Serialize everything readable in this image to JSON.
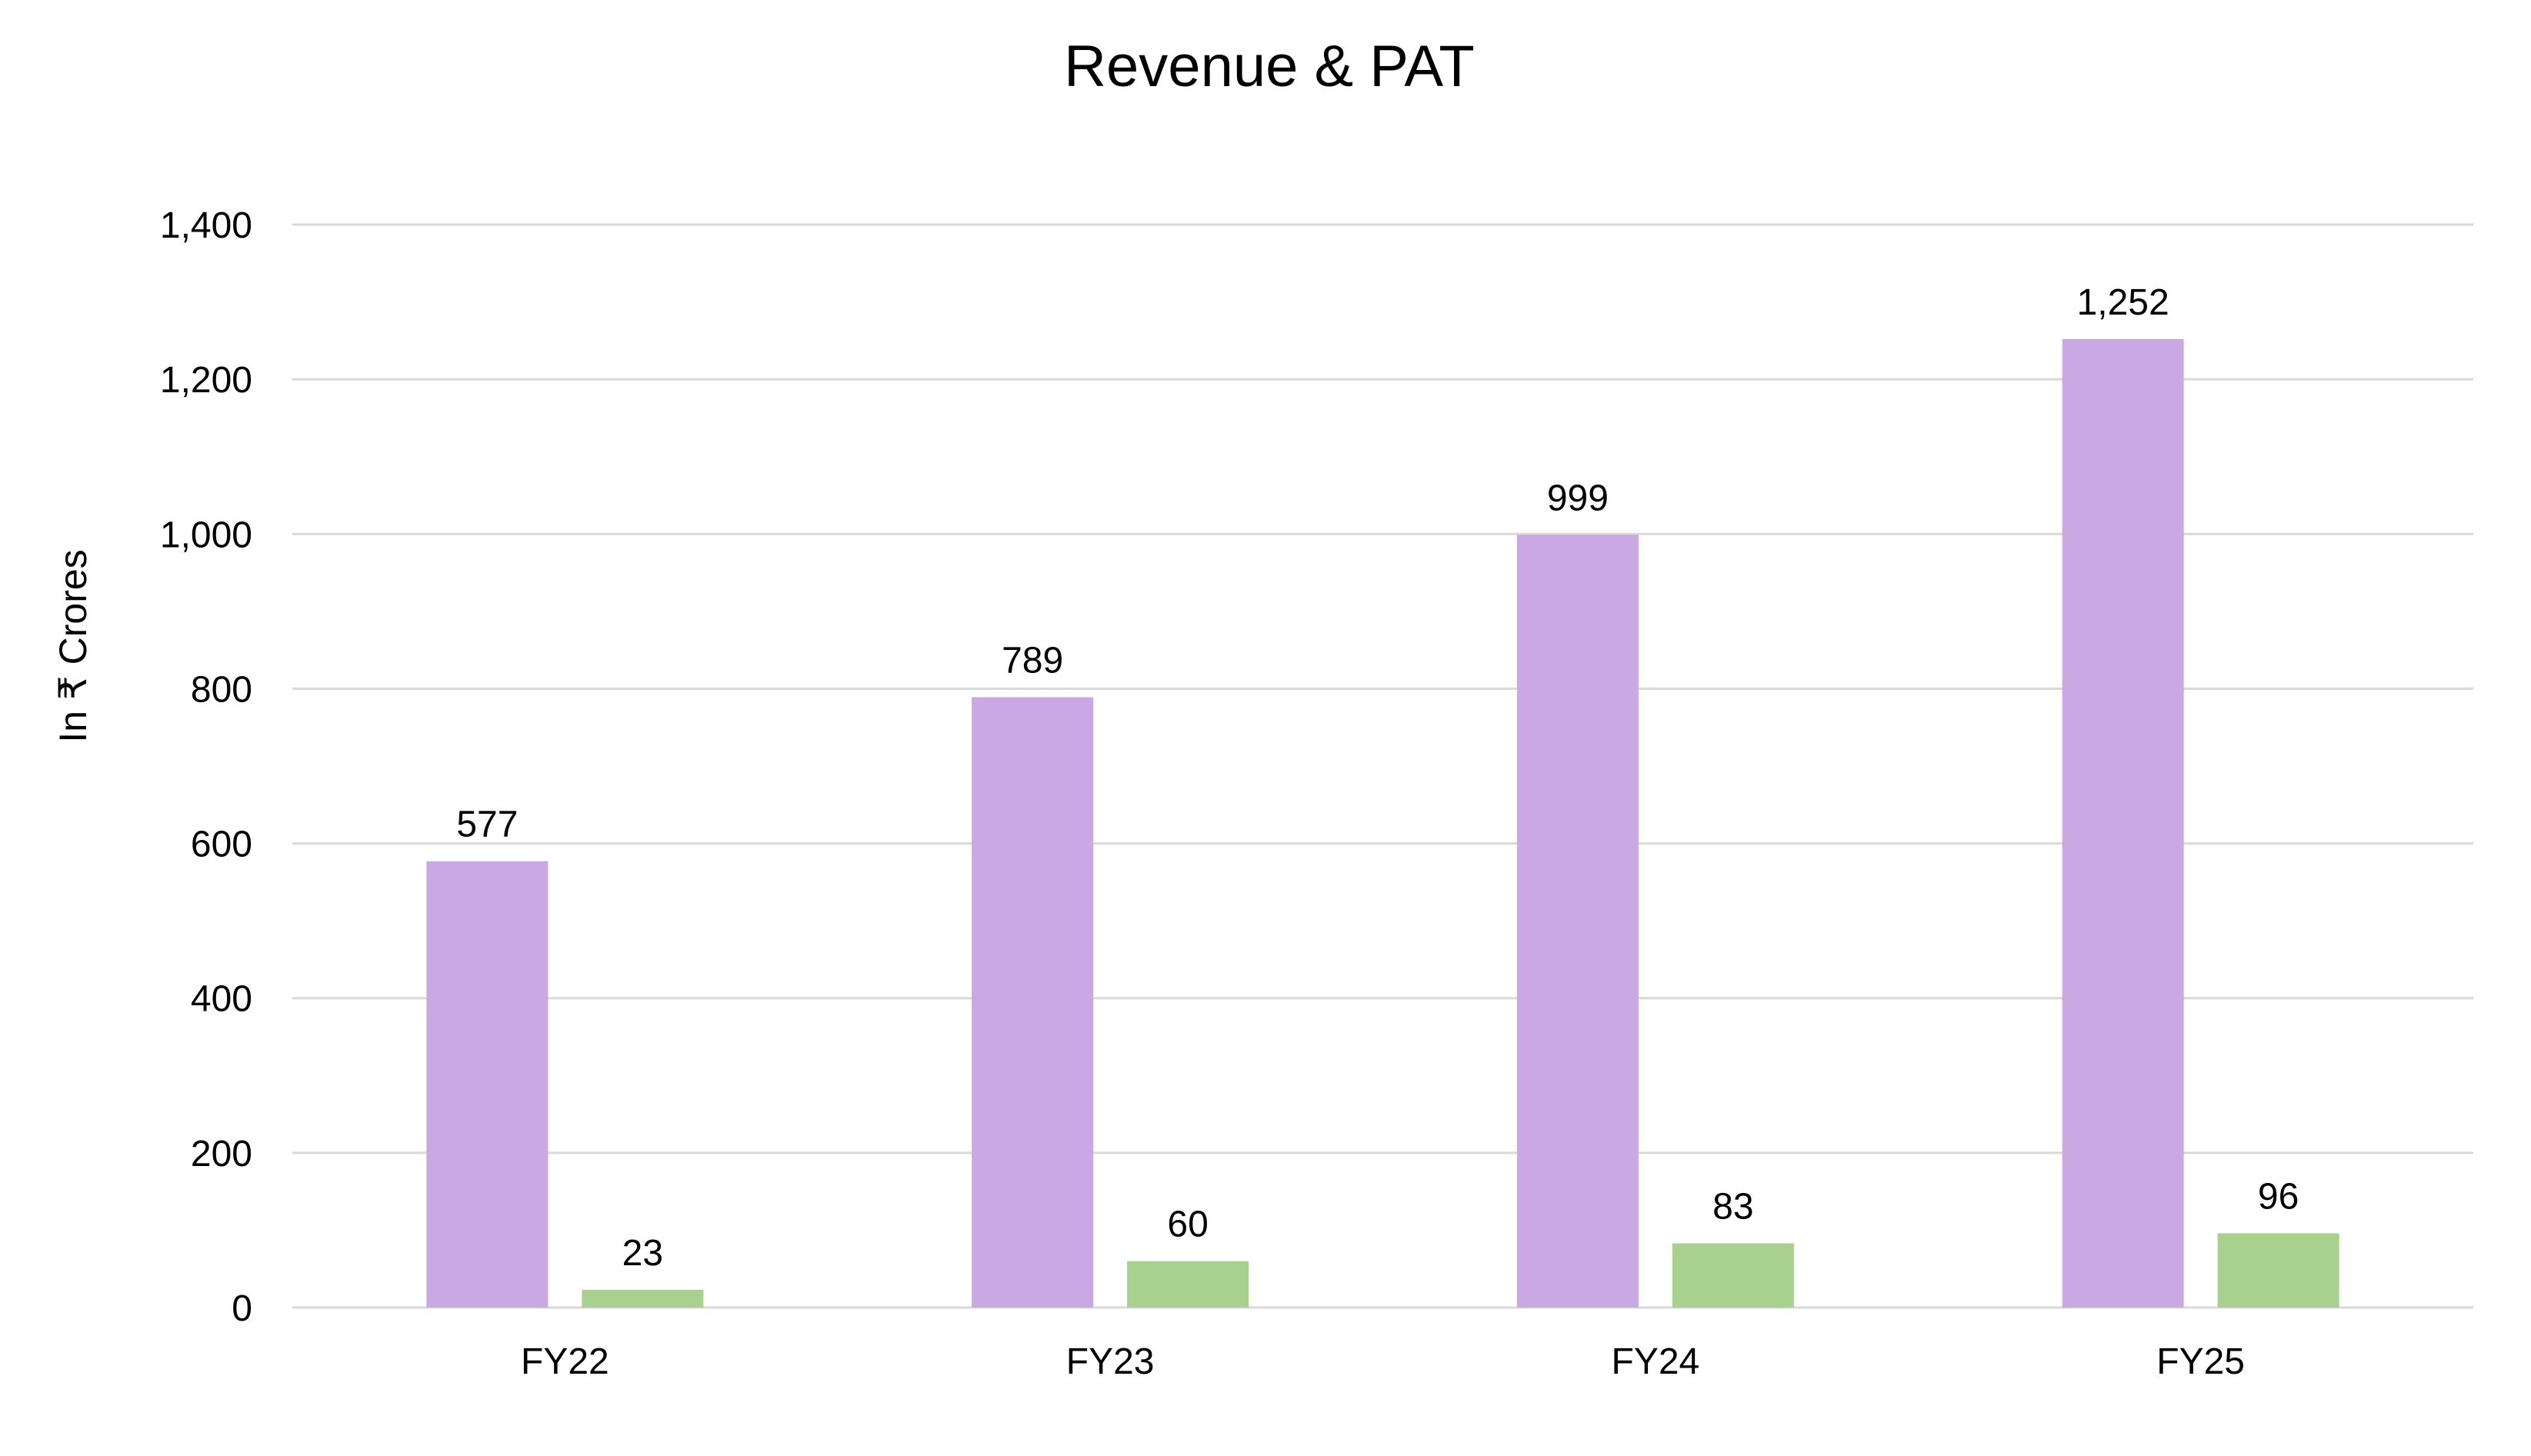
{
  "chart_data": {
    "type": "bar",
    "title": "Revenue & PAT",
    "xlabel": "",
    "ylabel": "In ₹ Crores",
    "categories": [
      "FY22",
      "FY23",
      "FY24",
      "FY25"
    ],
    "series": [
      {
        "values": [
          577,
          789,
          999,
          1252
        ],
        "labels": [
          "577",
          "789",
          "999",
          "1,252"
        ],
        "color": "#c9a8e3"
      },
      {
        "values": [
          23,
          60,
          83,
          96
        ],
        "labels": [
          "23",
          "60",
          "83",
          "96"
        ],
        "color": "#a9d18e"
      }
    ],
    "ylim": [
      0,
      1400
    ],
    "yticks": [
      0,
      200,
      400,
      600,
      800,
      1000,
      1200,
      1400
    ],
    "ytick_labels": [
      "0",
      "200",
      "400",
      "600",
      "800",
      "1,000",
      "1,200",
      "1,400"
    ],
    "grid": true,
    "legend": "none",
    "gridline_color": "#d9d9d9"
  }
}
